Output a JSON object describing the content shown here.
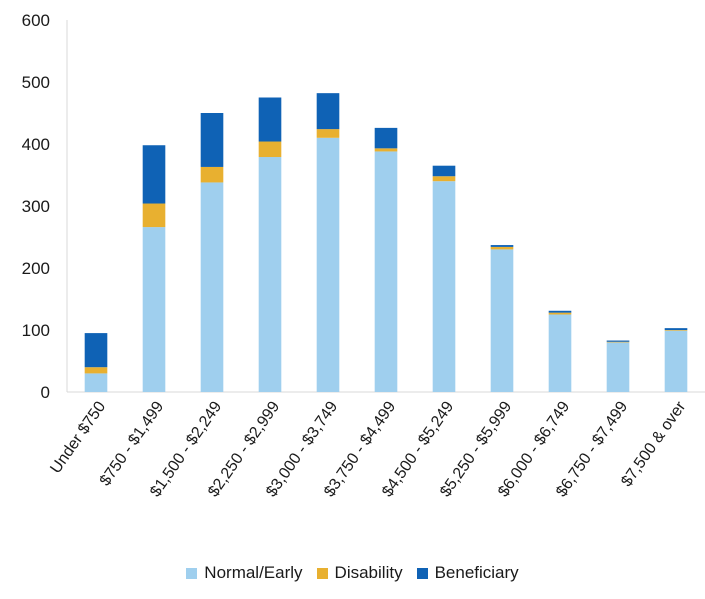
{
  "chart_data": {
    "type": "bar",
    "stacked": true,
    "categories": [
      "Under $750",
      "$750 - $1,499",
      "$1,500 - $2,249",
      "$2,250 - $2,999",
      "$3,000 - $3,749",
      "$3,750 - $4,499",
      "$4,500 - $5,249",
      "$5,250 - $5,999",
      "$6,000 - $6,749",
      "$6,750 - $7,499",
      "$7,500 & over"
    ],
    "series": [
      {
        "name": "Normal/Early",
        "color": "#9fcfee",
        "values": [
          30,
          266,
          338,
          379,
          410,
          388,
          340,
          230,
          125,
          80,
          99
        ]
      },
      {
        "name": "Disability",
        "color": "#e8b030",
        "values": [
          10,
          38,
          25,
          25,
          14,
          5,
          8,
          4,
          3,
          1,
          1
        ]
      },
      {
        "name": "Beneficiary",
        "color": "#0f62b5",
        "values": [
          55,
          94,
          87,
          71,
          58,
          33,
          17,
          3,
          3,
          2,
          3
        ]
      }
    ],
    "ylim": [
      0,
      600
    ],
    "yticks": [
      0,
      100,
      200,
      300,
      400,
      500,
      600
    ],
    "grid": false,
    "legend_position": "bottom"
  }
}
